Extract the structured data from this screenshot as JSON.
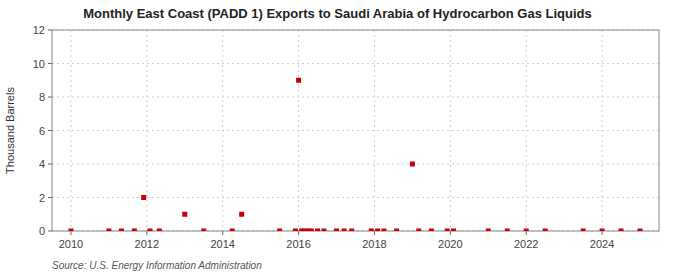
{
  "chart_data": {
    "type": "scatter",
    "title": "Monthly East Coast (PADD 1) Exports to Saudi Arabia of Hydrocarbon Gas Liquids",
    "ylabel": "Thousand Barrels",
    "source": "Source: U.S. Energy Information Administration",
    "color": "#cc0000",
    "marker": "square",
    "grid": true,
    "xlim": [
      2009.5,
      2025.5
    ],
    "ylim": [
      0,
      12
    ],
    "yticks": [
      0,
      2,
      4,
      6,
      8,
      10,
      12
    ],
    "xticks": [
      2010,
      2012,
      2014,
      2016,
      2018,
      2020,
      2022,
      2024
    ],
    "x": [
      2010.0,
      2011.0,
      2011.33,
      2011.67,
      2011.917,
      2012.083,
      2012.33,
      2013.0,
      2013.5,
      2014.25,
      2014.5,
      2015.5,
      2015.917,
      2016.0,
      2016.083,
      2016.167,
      2016.25,
      2016.333,
      2016.5,
      2016.667,
      2017.0,
      2017.2,
      2017.4,
      2017.917,
      2018.083,
      2018.25,
      2018.583,
      2019.0,
      2019.167,
      2019.5,
      2019.917,
      2020.083,
      2021.0,
      2021.5,
      2022.0,
      2022.5,
      2023.5,
      2024.0,
      2024.5,
      2025.0
    ],
    "values": [
      0,
      0,
      0,
      0,
      2,
      0,
      0,
      1,
      0,
      0,
      1,
      0,
      0,
      9,
      0,
      0,
      0,
      0,
      0,
      0,
      0,
      0,
      0,
      0,
      0,
      0,
      0,
      4,
      0,
      0,
      0,
      0,
      0,
      0,
      0,
      0,
      0,
      0,
      0,
      0
    ]
  }
}
